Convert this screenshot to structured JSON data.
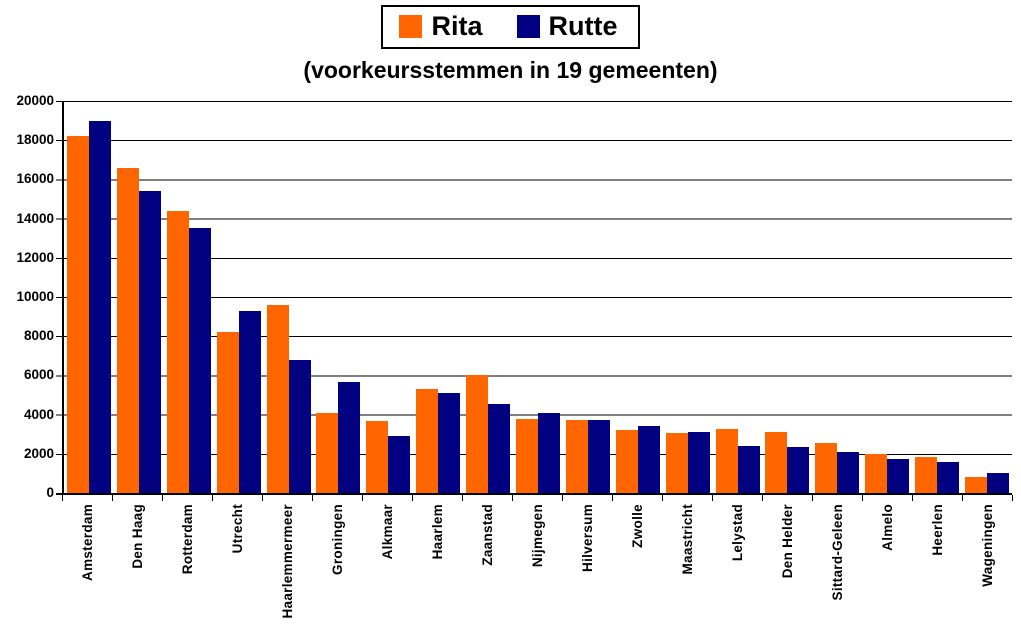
{
  "chart_data": {
    "type": "bar",
    "title": "(voorkeursstemmen in 19 gemeenten)",
    "xlabel": "",
    "ylabel": "",
    "ylim": [
      0,
      20000
    ],
    "y_tick_step": 2000,
    "y_ticks": [
      20000,
      18000,
      16000,
      14000,
      12000,
      10000,
      8000,
      6000,
      4000,
      2000,
      0
    ],
    "grid": "horizontal",
    "legend_position": "top-center",
    "categories": [
      "Amsterdam",
      "Den Haag",
      "Rotterdam",
      "Utrecht",
      "Haarlemmermeer",
      "Groningen",
      "Alkmaar",
      "Haarlem",
      "Zaanstad",
      "Nijmegen",
      "Hilversum",
      "Zwolle",
      "Maastricht",
      "Lelystad",
      "Den Helder",
      "Sittard-Geleen",
      "Almelo",
      "Heerlen",
      "Wageningen"
    ],
    "series": [
      {
        "name": "Rita",
        "color": "#FF6600",
        "values": [
          18200,
          16600,
          14400,
          8200,
          9600,
          4100,
          3650,
          5300,
          6000,
          3800,
          3700,
          3200,
          3050,
          3250,
          3100,
          2550,
          2000,
          1850,
          800
        ]
      },
      {
        "name": "Rutte",
        "color": "#000080",
        "values": [
          19000,
          15400,
          13500,
          9300,
          6800,
          5650,
          2900,
          5100,
          4550,
          4100,
          3700,
          3400,
          3100,
          2400,
          2350,
          2100,
          1750,
          1600,
          1000
        ]
      }
    ]
  },
  "colors": {
    "background": "#FFFFFF",
    "grid": "#000000",
    "text": "#000000"
  }
}
